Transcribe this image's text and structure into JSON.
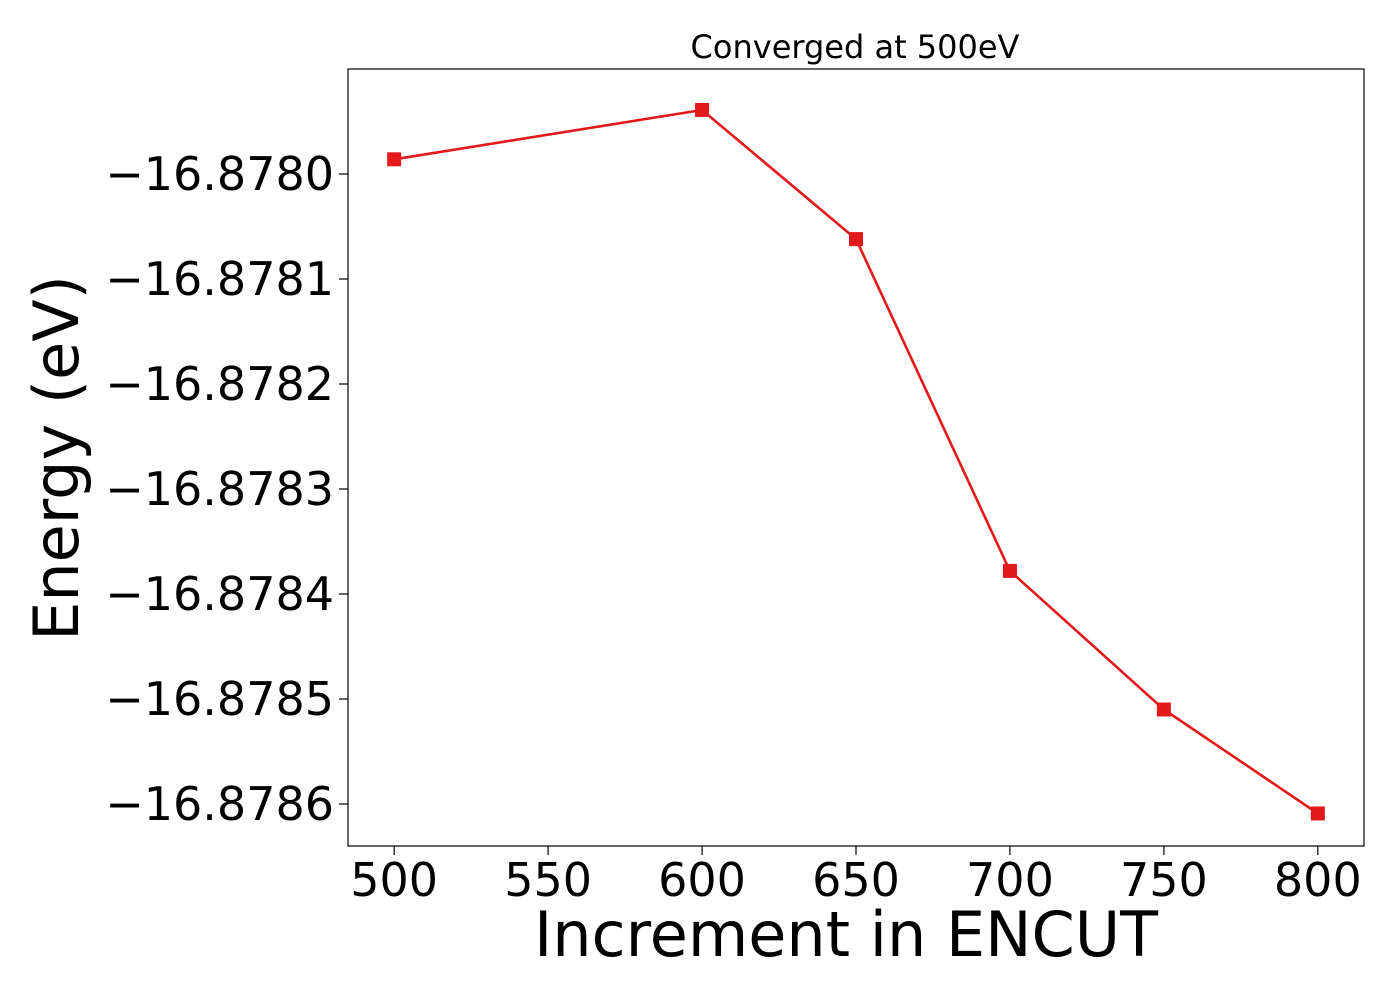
{
  "chart_data": {
    "type": "line",
    "title": "Converged at 500eV",
    "xlabel": "Increment in ENCUT",
    "ylabel": "Energy (eV)",
    "x": [
      500,
      600,
      650,
      700,
      750,
      800
    ],
    "series": [
      {
        "values": [
          -16.877986,
          -16.877939,
          -16.878062,
          -16.878378,
          -16.87851,
          -16.878609
        ],
        "color": "#e31a1c",
        "marker": "square"
      }
    ],
    "xlim": [
      485,
      815
    ],
    "ylim": [
      -16.87864,
      -16.8779
    ],
    "xticks": [
      500,
      550,
      600,
      650,
      700,
      750,
      800
    ],
    "xtick_labels": [
      "500",
      "550",
      "600",
      "650",
      "700",
      "750",
      "800"
    ],
    "yticks": [
      -16.878,
      -16.8781,
      -16.8782,
      -16.8783,
      -16.8784,
      -16.8785,
      -16.8786
    ],
    "ytick_labels": [
      "−16.8780",
      "−16.8781",
      "−16.8782",
      "−16.8783",
      "−16.8784",
      "−16.8785",
      "−16.8786"
    ],
    "grid": false,
    "legend": "none"
  }
}
